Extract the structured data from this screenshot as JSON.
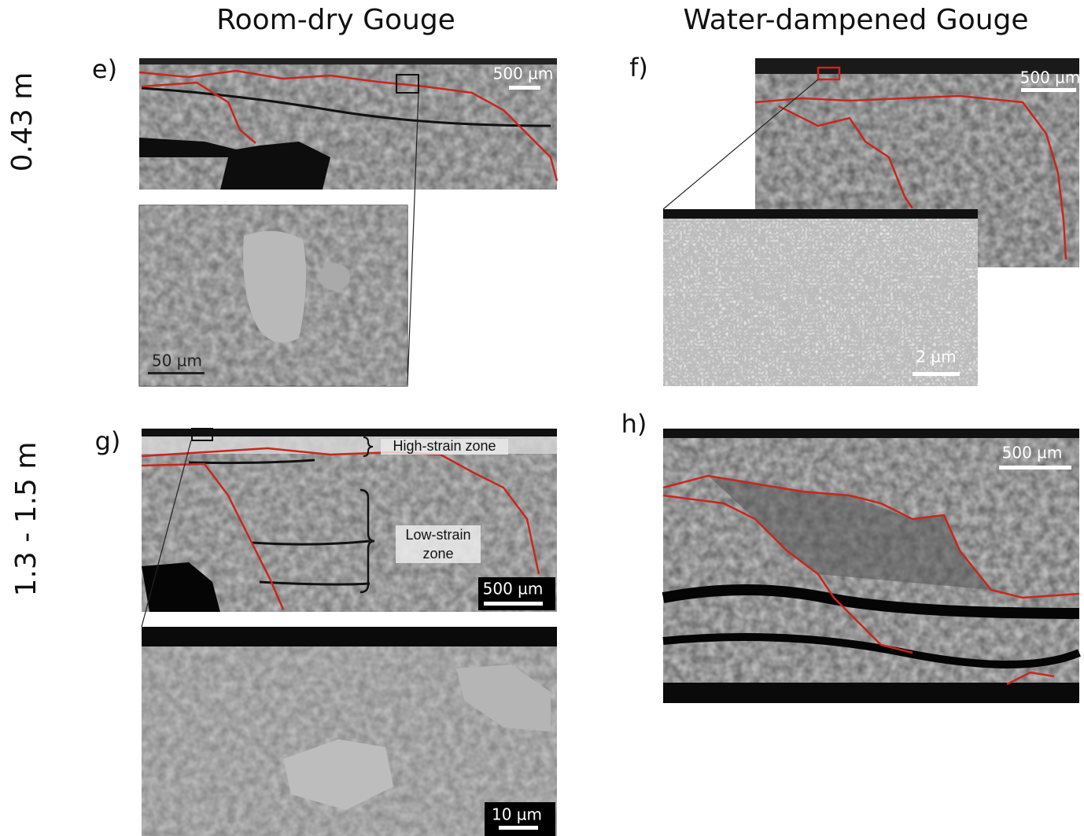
{
  "column_headers": [
    "Room-dry Gouge",
    "Water-dampened Gouge"
  ],
  "row_labels": [
    "0.43 m",
    "1.3 - 1.5 m"
  ],
  "panels": [
    {
      "label": "e)",
      "scale_bar": "500 µm",
      "inset_scale_bar": "50 µm"
    },
    {
      "label": "f)",
      "scale_bar": "500 µm",
      "inset_scale_bar": "2 µm"
    },
    {
      "label": "g)",
      "scale_bar": "500 µm",
      "inset_scale_bar": "10 µm",
      "annotations": [
        "High-strain zone",
        "Low-strain zone"
      ]
    },
    {
      "label": "h)",
      "scale_bar": "500 µm"
    }
  ]
}
